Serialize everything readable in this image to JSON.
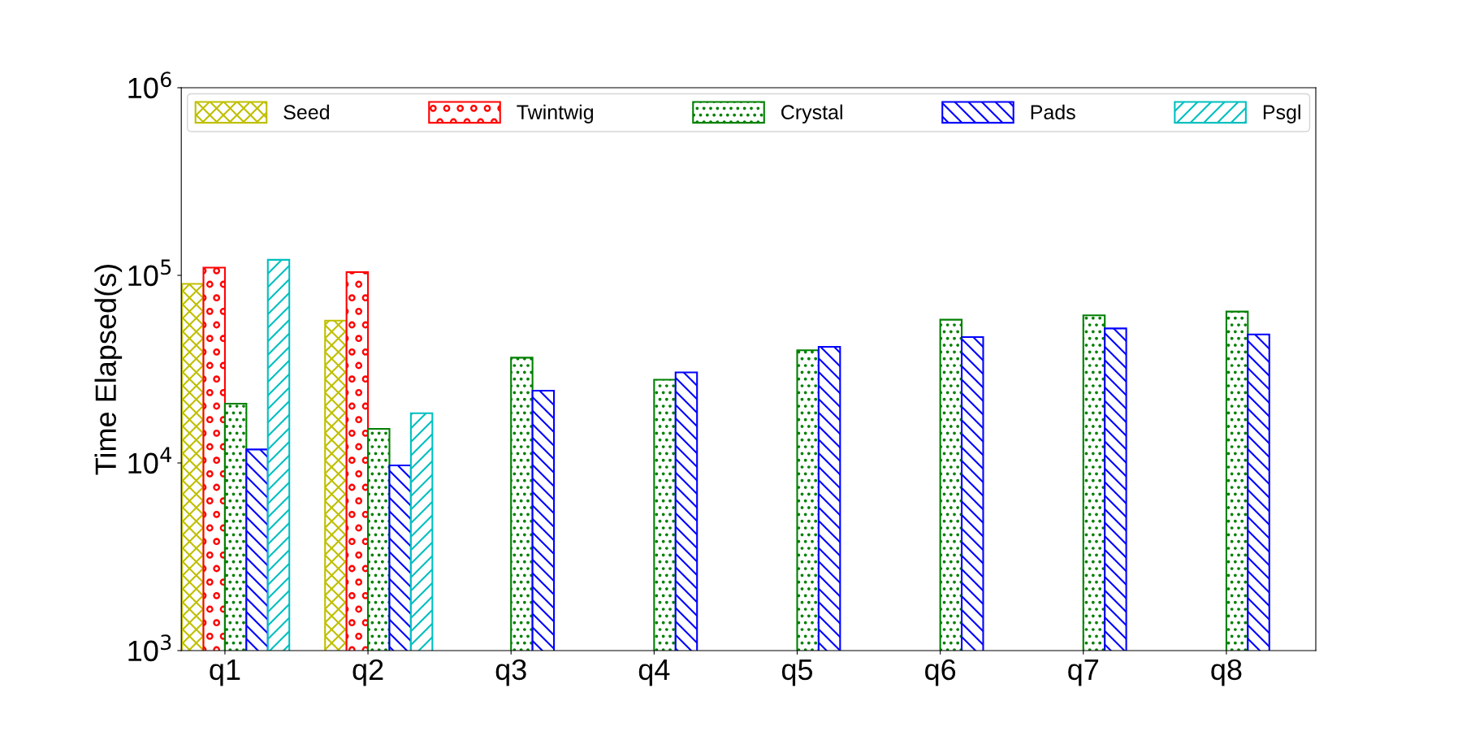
{
  "chart_data": {
    "type": "bar",
    "ylabel": "Time Elapsed(s)",
    "log": true,
    "categories": [
      "q1",
      "q2",
      "q3",
      "q4",
      "q5",
      "q6",
      "q7",
      "q8"
    ],
    "ylim": [
      1000,
      1000000
    ],
    "yticks": [
      {
        "value": 1000,
        "label": "10$^{3}$"
      },
      {
        "value": 10000,
        "label": "10$^{4}$"
      },
      {
        "value": 100000,
        "label": "10$^{5}$"
      },
      {
        "value": 1000000,
        "label": "10$^{6}$"
      }
    ],
    "legend": "top",
    "grid": false,
    "series": [
      {
        "name": "Seed",
        "color": "#bfbf00",
        "values": [
          90000,
          57400,
          null,
          null,
          null,
          null,
          null,
          null
        ]
      },
      {
        "name": "Twintwig",
        "color": "#ff0000",
        "values": [
          110000,
          104000,
          null,
          null,
          null,
          null,
          null,
          null
        ]
      },
      {
        "name": "Crystal",
        "color": "#008000",
        "values": [
          20700,
          15200,
          36400,
          27800,
          39900,
          58000,
          61200,
          64100
        ]
      },
      {
        "name": "Pads",
        "color": "#0000ff",
        "values": [
          11800,
          9700,
          24300,
          30400,
          41600,
          46900,
          52100,
          48400
        ]
      },
      {
        "name": "Psgl",
        "color": "#00bfbf",
        "values": [
          121000,
          18400,
          null,
          null,
          null,
          null,
          null,
          null
        ]
      }
    ]
  }
}
